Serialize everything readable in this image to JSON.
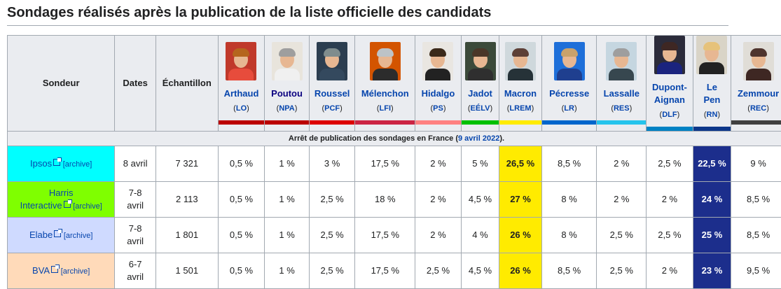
{
  "title": "Sondages réalisés après la publication de la liste officielle des candidats",
  "headers": {
    "pollster": "Sondeur",
    "dates": "Dates",
    "sample": "Échantillon"
  },
  "candidates": [
    {
      "name": "Arthaud",
      "party": "LO",
      "color": "#bb0000"
    },
    {
      "name": "Poutou",
      "party": "NPA",
      "color": "#bb0000"
    },
    {
      "name": "Roussel",
      "party": "PCF",
      "color": "#dd0000"
    },
    {
      "name": "Mélenchon",
      "party": "LFI",
      "color": "#cc2443"
    },
    {
      "name": "Hidalgo",
      "party": "PS",
      "color": "#ff8080"
    },
    {
      "name": "Jadot",
      "party": "EÉLV",
      "color": "#00c000"
    },
    {
      "name": "Macron",
      "party": "LREM",
      "color": "#ffeb00"
    },
    {
      "name": "Pécresse",
      "party": "LR",
      "color": "#0066cc"
    },
    {
      "name": "Lassalle",
      "party": "RES",
      "color": "#26c4ec"
    },
    {
      "name": "Dupont-Aignan",
      "name_line1": "Dupont-",
      "name_line2": "Aignan",
      "party": "DLF",
      "color": "#0082c4"
    },
    {
      "name": "Le Pen",
      "name_line1": "Le",
      "name_line2": "Pen",
      "party": "RN",
      "color": "#0d378a"
    },
    {
      "name": "Zemmour",
      "party": "REC",
      "color": "#404040"
    }
  ],
  "notice": {
    "text": "Arrêt de publication des sondages en France (",
    "link": "9 avril 2022",
    "suffix": ")."
  },
  "archive_label": "[archive]",
  "rows": [
    {
      "pollster": "Ipsos",
      "color": "#00ffff",
      "dates": "8 avril",
      "sample": "7 321",
      "values": [
        "0,5 %",
        "1 %",
        "3 %",
        "17,5 %",
        "2 %",
        "5 %",
        "26,5 %",
        "8,5 %",
        "2 %",
        "2,5 %",
        "22,5 %",
        "9 %"
      ]
    },
    {
      "pollster": "Harris Interactive",
      "pollster_line1": "Harris",
      "pollster_line2": "Interactive",
      "color": "#7fff00",
      "dates": "7-8 avril",
      "dates_line1": "7-8",
      "dates_line2": "avril",
      "sample": "2 113",
      "values": [
        "0,5 %",
        "1 %",
        "2,5 %",
        "18 %",
        "2 %",
        "4,5 %",
        "27 %",
        "8 %",
        "2 %",
        "2 %",
        "24 %",
        "8,5 %"
      ]
    },
    {
      "pollster": "Elabe",
      "color": "#cfdaff",
      "dates": "7-8 avril",
      "dates_line1": "7-8",
      "dates_line2": "avril",
      "sample": "1 801",
      "values": [
        "0,5 %",
        "1 %",
        "2,5 %",
        "17,5 %",
        "2 %",
        "4 %",
        "26 %",
        "8 %",
        "2,5 %",
        "2,5 %",
        "25 %",
        "8,5 %"
      ]
    },
    {
      "pollster": "BVA",
      "color": "#ffdab9",
      "dates": "6-7 avril",
      "dates_line1": "6-7",
      "dates_line2": "avril",
      "sample": "1 501",
      "values": [
        "0,5 %",
        "1 %",
        "2,5 %",
        "17,5 %",
        "2,5 %",
        "4,5 %",
        "26 %",
        "8,5 %",
        "2,5 %",
        "2 %",
        "23 %",
        "9,5 %"
      ]
    }
  ],
  "photo_palettes": [
    {
      "bg": "#c0392b",
      "hair": "#b5651d",
      "body": "#e74c3c",
      "icon": "portrait-arthaud-icon"
    },
    {
      "bg": "#e8e4dc",
      "hair": "#9e9e9e",
      "body": "#f0f0f0",
      "icon": "portrait-poutou-icon"
    },
    {
      "bg": "#2c3e50",
      "hair": "#7f8c8d",
      "body": "#34495e",
      "icon": "portrait-roussel-icon"
    },
    {
      "bg": "#d35400",
      "hair": "#bdc3c7",
      "body": "#2c2c2c",
      "icon": "portrait-melenchon-icon"
    },
    {
      "bg": "#e9e6e1",
      "hair": "#3b2a1a",
      "body": "#222222",
      "icon": "portrait-hidalgo-icon"
    },
    {
      "bg": "#3b4a3a",
      "hair": "#4a3728",
      "body": "#2f2f2f",
      "icon": "portrait-jadot-icon"
    },
    {
      "bg": "#cfd8dc",
      "hair": "#5d4037",
      "body": "#263238",
      "icon": "portrait-macron-icon"
    },
    {
      "bg": "#1e6fd9",
      "hair": "#c9a26b",
      "body": "#1f3f8f",
      "icon": "portrait-pecresse-icon"
    },
    {
      "bg": "#c5d6e0",
      "hair": "#9e9e9e",
      "body": "#37474f",
      "icon": "portrait-lassalle-icon"
    },
    {
      "bg": "#2b2b3a",
      "hair": "#3e2723",
      "body": "#1a237e",
      "icon": "portrait-dupont-aignan-icon"
    },
    {
      "bg": "#d9d4c7",
      "hair": "#e6c27a",
      "body": "#222222",
      "icon": "portrait-lepen-icon"
    },
    {
      "bg": "#e0ddd7",
      "hair": "#4e342e",
      "body": "#3e2723",
      "icon": "portrait-zemmour-icon"
    }
  ]
}
